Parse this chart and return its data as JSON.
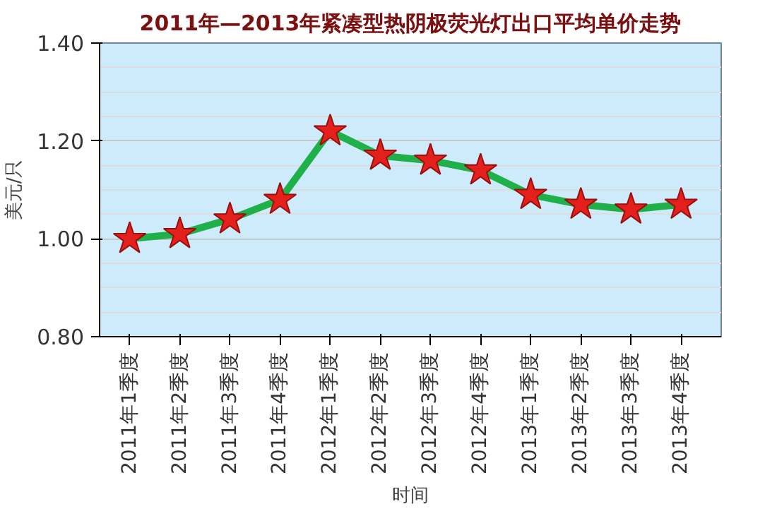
{
  "chart_data": {
    "type": "line",
    "title": "2011年—2013年紧凑型热阴极荧光灯出口平均单价走势",
    "xlabel": "时间",
    "ylabel": "美元/只",
    "categories": [
      "2011年1季度",
      "2011年2季度",
      "2011年3季度",
      "2011年4季度",
      "2012年1季度",
      "2012年2季度",
      "2012年3季度",
      "2012年4季度",
      "2013年1季度",
      "2013年2季度",
      "2013年3季度",
      "2013年4季度"
    ],
    "series": [
      {
        "color": "#1fb04a",
        "values": [
          1.0,
          1.01,
          1.04,
          1.08,
          1.22,
          1.17,
          1.16,
          1.14,
          1.09,
          1.07,
          1.06,
          1.07
        ]
      }
    ],
    "marker": "star",
    "ylim": [
      0.8,
      1.4
    ],
    "yticks": [
      {
        "value": 0.8,
        "label": "0.80"
      },
      {
        "value": 1.0,
        "label": "1.00"
      },
      {
        "value": 1.2,
        "label": "1.20"
      },
      {
        "value": 1.4,
        "label": "1.40"
      }
    ],
    "grid": "y"
  }
}
